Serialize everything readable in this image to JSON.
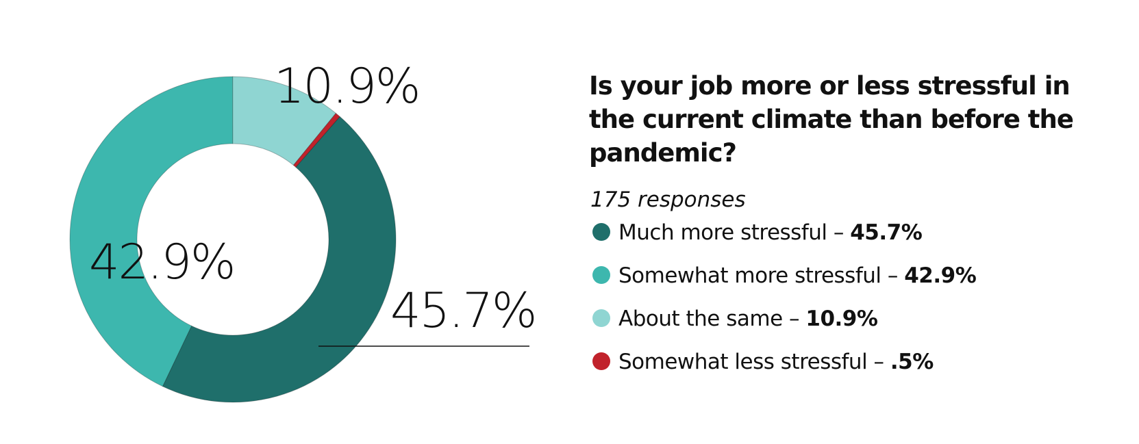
{
  "chart_data": {
    "type": "donut",
    "title": [
      "Is your job more or less stressful in",
      "the current climate than before the",
      "pandemic?"
    ],
    "subtitle": "175 responses",
    "categories": [
      "Much more stressful",
      "Somewhat more stressful",
      "About the same",
      "Somewhat less stressful"
    ],
    "values": [
      45.7,
      42.9,
      10.9,
      0.5
    ],
    "value_labels": [
      "45.7%",
      "42.9%",
      "10.9%",
      ".5%"
    ],
    "colors": [
      "#1f6f6b",
      "#3db7ae",
      "#8fd5d2",
      "#c1222b"
    ],
    "legend_separator": "–"
  }
}
